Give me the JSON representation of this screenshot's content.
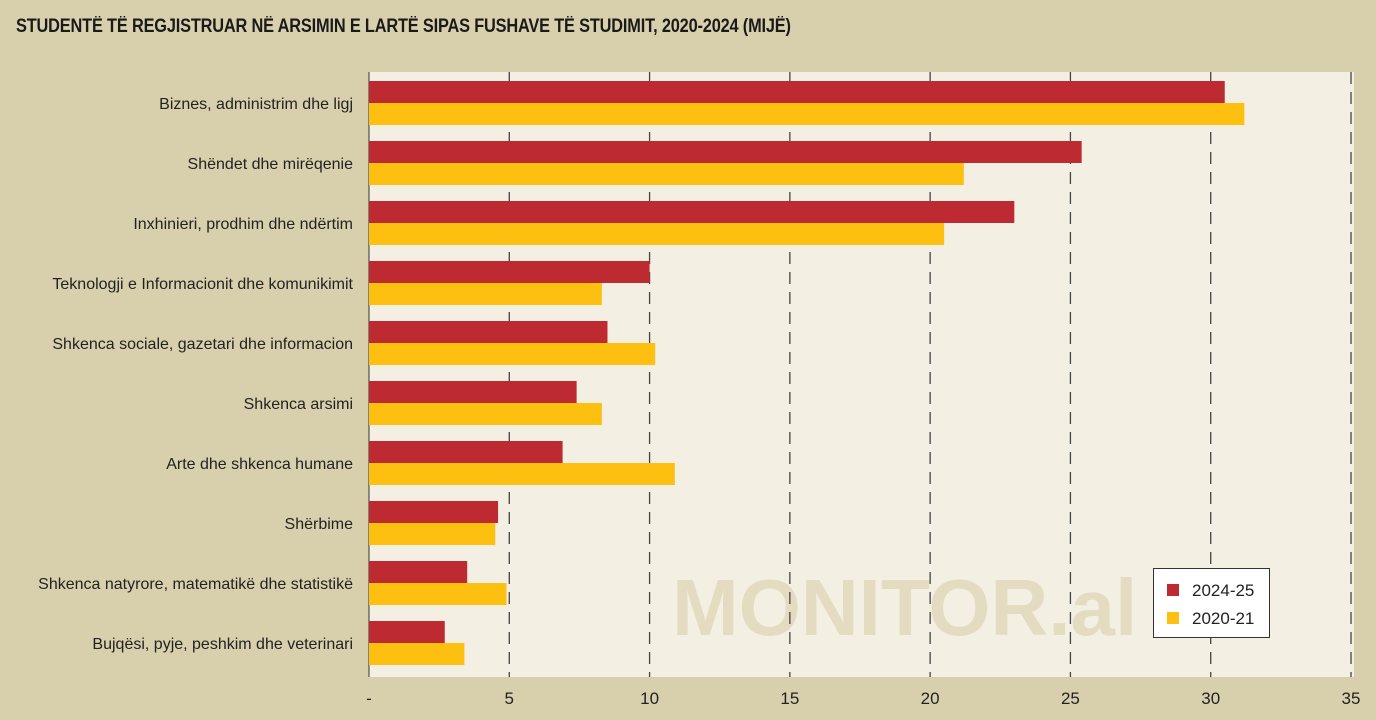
{
  "chart_data": {
    "type": "bar",
    "orientation": "horizontal",
    "title": "STUDENTË TË REGJISTRUAR NË ARSIMIN E LARTË SIPAS FUSHAVE TË STUDIMIT, 2020-2024 (MIJË)",
    "categories": [
      "Biznes, administrim dhe ligj",
      "Shëndet dhe mirëqenie",
      "Inxhinieri, prodhim dhe ndërtim",
      "Teknologji e Informacionit dhe komunikimit",
      "Shkenca sociale, gazetari dhe  informacion",
      "Shkenca arsimi",
      "Arte dhe shkenca humane",
      "Shërbime",
      "Shkenca natyrore, matematikë dhe statistikë",
      "Bujqësi, pyje, peshkim dhe veterinari"
    ],
    "series": [
      {
        "name": "2024-25",
        "color": "#be2a32",
        "values": [
          30.5,
          25.4,
          23.0,
          10.0,
          8.5,
          7.4,
          6.9,
          4.6,
          3.5,
          2.7
        ]
      },
      {
        "name": "2020-21",
        "color": "#fdc010",
        "values": [
          31.2,
          21.2,
          20.5,
          8.3,
          10.2,
          8.3,
          10.9,
          4.5,
          4.9,
          3.4
        ]
      }
    ],
    "xlim": [
      0,
      35
    ],
    "xticks": [
      0,
      5,
      10,
      15,
      20,
      25,
      30,
      35
    ],
    "xtick_labels": [
      "-",
      "5",
      "10",
      "15",
      "20",
      "25",
      "30",
      "35"
    ],
    "grid": "vertical dashed",
    "legend_position": "bottom-right",
    "watermark": "MONITOR.al"
  }
}
